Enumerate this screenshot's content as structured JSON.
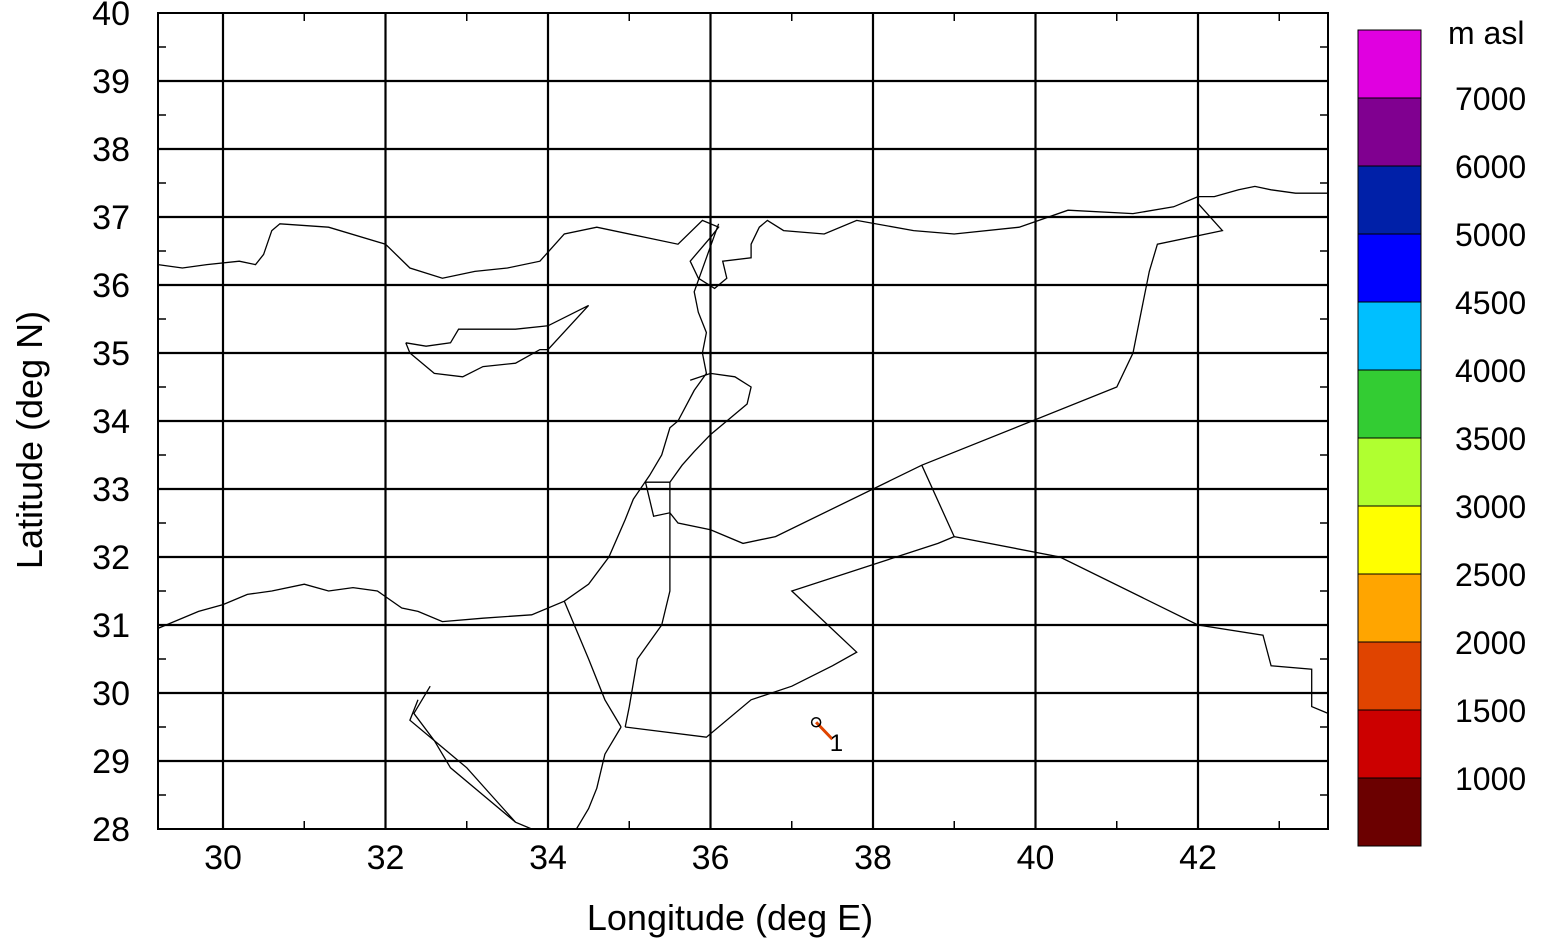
{
  "map": {
    "xlabel": "Longitude (deg E)",
    "ylabel": "Latitude (deg N)",
    "x_range": [
      29.2,
      43.6
    ],
    "y_range": [
      28,
      40
    ],
    "x_ticks": [
      30,
      32,
      34,
      36,
      38,
      40,
      42
    ],
    "x_tick_labels": [
      "30",
      "32",
      "34",
      "36",
      "38",
      "40",
      "42"
    ],
    "y_ticks": [
      28,
      29,
      30,
      31,
      32,
      33,
      34,
      35,
      36,
      37,
      38,
      39,
      40
    ],
    "y_tick_labels": [
      "28",
      "29",
      "30",
      "31",
      "32",
      "33",
      "34",
      "35",
      "36",
      "37",
      "38",
      "39",
      "40"
    ],
    "grid": true,
    "trajectory": {
      "label": "1",
      "start": [
        37.3,
        29.57
      ],
      "end": [
        37.5,
        29.32
      ],
      "color": "#e04400"
    }
  },
  "colorbar": {
    "title": "m asl",
    "colors": [
      "#6b0000",
      "#cc0000",
      "#e04400",
      "#ffa500",
      "#ffff00",
      "#b0ff30",
      "#33cc33",
      "#00bfff",
      "#0000ff",
      "#0020a8",
      "#800090",
      "#e000e0"
    ],
    "labels": [
      "1000",
      "1500",
      "2000",
      "2500",
      "3000",
      "3500",
      "4000",
      "4500",
      "5000",
      "6000",
      "7000"
    ]
  }
}
